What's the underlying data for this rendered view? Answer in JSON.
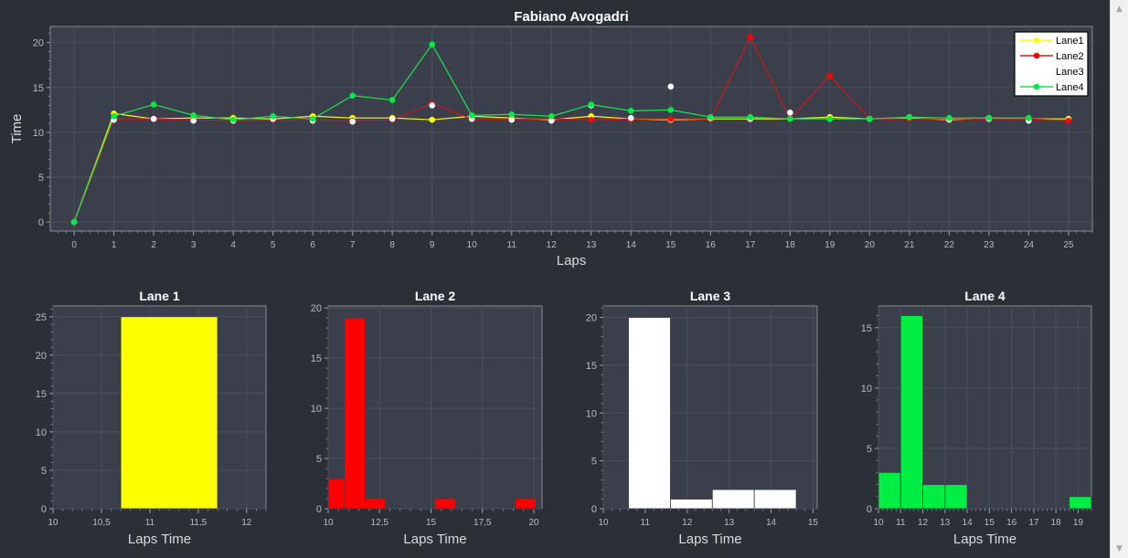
{
  "colors": {
    "background": "#2b2f36",
    "plot_background": "#3a3f4b",
    "grid": "#4a505c",
    "axis": "#9a9fa8",
    "text": "#ffffff",
    "tick_text": "#b8bcc4",
    "lane1": "#ffff00",
    "lane2": "#ff0000",
    "lane2_line": "#d01818",
    "lane3": "#ffffff",
    "lane4": "#00ee44",
    "lane4_line": "#22dd55"
  },
  "chart_data": [
    {
      "type": "line",
      "title": "Fabiano Avogadri",
      "xlabel": "Laps",
      "ylabel": "Time",
      "xlim": [
        -0.6,
        25.6
      ],
      "ylim": [
        -1,
        21.8
      ],
      "xticks": [
        0,
        1,
        2,
        3,
        4,
        5,
        6,
        7,
        8,
        9,
        10,
        11,
        12,
        13,
        14,
        15,
        16,
        17,
        18,
        19,
        20,
        21,
        22,
        23,
        24,
        25
      ],
      "yticks": [
        0,
        5,
        10,
        15,
        20
      ],
      "grid": true,
      "legend": "top-right",
      "x": [
        0,
        1,
        2,
        3,
        4,
        5,
        6,
        7,
        8,
        9,
        10,
        11,
        12,
        13,
        14,
        15,
        16,
        17,
        18,
        19,
        20,
        21,
        22,
        23,
        24,
        25
      ],
      "series": [
        {
          "name": "Lane1",
          "color": "#ffff00",
          "line_color": "#ffff00",
          "show_line": true,
          "values": [
            0,
            12.1,
            11.5,
            11.6,
            11.6,
            11.5,
            11.8,
            11.6,
            11.6,
            11.4,
            11.8,
            11.6,
            11.4,
            11.8,
            11.5,
            11.4,
            11.5,
            11.5,
            11.5,
            11.7,
            11.5,
            11.6,
            11.4,
            11.6,
            11.5,
            11.5
          ]
        },
        {
          "name": "Lane2",
          "color": "#ff0000",
          "line_color": "#d01818",
          "show_line": true,
          "values": [
            0,
            11.5,
            11.5,
            11.4,
            11.3,
            11.4,
            11.4,
            11.3,
            11.4,
            13.2,
            11.5,
            11.5,
            11.5,
            11.4,
            11.5,
            11.5,
            11.5,
            20.6,
            11.5,
            16.3,
            11.5,
            11.5,
            11.5,
            11.5,
            11.5,
            11.3
          ]
        },
        {
          "name": "Lane3",
          "color": "#ffffff",
          "line_color": "#ffffff",
          "show_line": false,
          "values": [
            0,
            11.4,
            11.5,
            11.3,
            11.3,
            11.5,
            11.3,
            11.2,
            11.5,
            13.0,
            11.5,
            11.4,
            11.3,
            13.0,
            11.6,
            15.1,
            11.6,
            11.5,
            12.2,
            11.5,
            11.5,
            11.7,
            11.5,
            11.5,
            11.3,
            null
          ]
        },
        {
          "name": "Lane4",
          "color": "#00ee44",
          "line_color": "#22dd55",
          "show_line": true,
          "values": [
            0,
            11.8,
            13.1,
            11.9,
            11.4,
            11.8,
            11.5,
            14.1,
            13.6,
            19.8,
            11.9,
            12.0,
            11.8,
            13.1,
            12.4,
            12.5,
            11.7,
            11.7,
            11.5,
            11.5,
            11.5,
            11.7,
            11.6,
            11.6,
            11.6,
            null
          ]
        }
      ]
    },
    {
      "type": "bar",
      "title": "Lane 1",
      "xlabel": "Laps Time",
      "xlim": [
        10,
        12.2
      ],
      "ylim": [
        0,
        26.4
      ],
      "xticks": [
        10,
        10.5,
        11,
        11.5,
        12
      ],
      "xtick_labels": [
        "10",
        "10,5",
        "11",
        "11,5",
        "12"
      ],
      "yticks": [
        0,
        5,
        10,
        15,
        20,
        25
      ],
      "color": "#ffff00",
      "bins": [
        {
          "x0": 10.7,
          "x1": 11.7,
          "count": 25
        }
      ]
    },
    {
      "type": "bar",
      "title": "Lane 2",
      "xlabel": "Laps Time",
      "xlim": [
        10,
        20.4
      ],
      "ylim": [
        0,
        20.2
      ],
      "xticks": [
        10,
        12.5,
        15,
        17.5,
        20
      ],
      "xtick_labels": [
        "10",
        "12,5",
        "15",
        "17,5",
        "20"
      ],
      "yticks": [
        0,
        5,
        10,
        15,
        20
      ],
      "color": "#ff0000",
      "bins": [
        {
          "x0": 10.0,
          "x1": 10.8,
          "count": 3
        },
        {
          "x0": 10.8,
          "x1": 11.8,
          "count": 19
        },
        {
          "x0": 11.8,
          "x1": 12.8,
          "count": 1
        },
        {
          "x0": 15.2,
          "x1": 16.2,
          "count": 1
        },
        {
          "x0": 19.1,
          "x1": 20.1,
          "count": 1
        }
      ]
    },
    {
      "type": "bar",
      "title": "Lane 3",
      "xlabel": "Laps Time",
      "xlim": [
        10,
        15.1
      ],
      "ylim": [
        0,
        21.2
      ],
      "xticks": [
        10,
        11,
        12,
        13,
        14,
        15
      ],
      "xtick_labels": [
        "10",
        "11",
        "12",
        "13",
        "14",
        "15"
      ],
      "yticks": [
        0,
        5,
        10,
        15,
        20
      ],
      "color": "#ffffff",
      "bins": [
        {
          "x0": 10.6,
          "x1": 11.6,
          "count": 20
        },
        {
          "x0": 11.6,
          "x1": 12.6,
          "count": 1
        },
        {
          "x0": 12.6,
          "x1": 13.6,
          "count": 2
        },
        {
          "x0": 13.6,
          "x1": 14.6,
          "count": 2
        }
      ]
    },
    {
      "type": "bar",
      "title": "Lane 4",
      "xlabel": "Laps Time",
      "xlim": [
        10,
        19.6
      ],
      "ylim": [
        0,
        16.8
      ],
      "xticks": [
        10,
        11,
        12,
        13,
        14,
        15,
        16,
        17,
        18,
        19
      ],
      "xtick_labels": [
        "10",
        "11",
        "12",
        "13",
        "14",
        "15",
        "16",
        "17",
        "18",
        "19"
      ],
      "yticks": [
        0,
        5,
        10,
        15
      ],
      "color": "#00ee44",
      "bins": [
        {
          "x0": 10.0,
          "x1": 11.0,
          "count": 3
        },
        {
          "x0": 11.0,
          "x1": 12.0,
          "count": 16
        },
        {
          "x0": 12.0,
          "x1": 13.0,
          "count": 2
        },
        {
          "x0": 13.0,
          "x1": 14.0,
          "count": 2
        },
        {
          "x0": 18.6,
          "x1": 19.6,
          "count": 1
        }
      ]
    }
  ],
  "scrollbar": {
    "up_icon": "triangle-up-icon",
    "down_icon": "triangle-down-icon",
    "up_glyph": "▲",
    "down_glyph": "▼"
  }
}
